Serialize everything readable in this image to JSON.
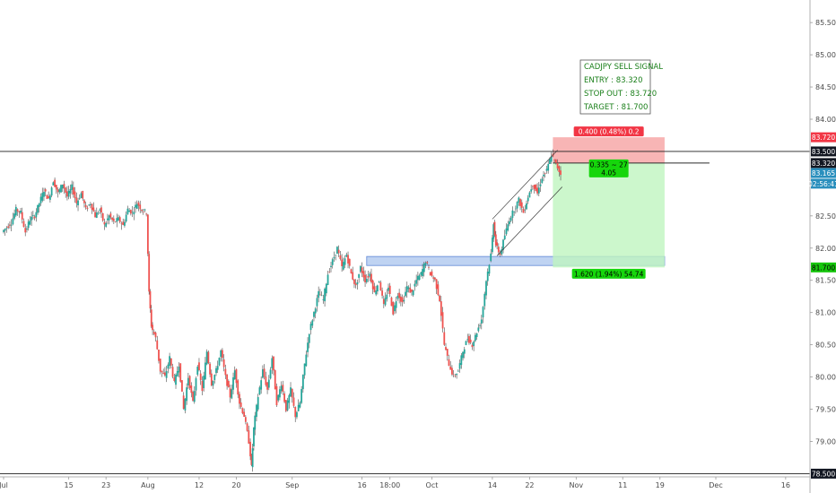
{
  "chart_data": {
    "type": "candlestick",
    "symbol_note": "",
    "x_ticks": [
      {
        "label": "Jul",
        "day": 0
      },
      {
        "label": "15",
        "day": 14
      },
      {
        "label": "23",
        "day": 22
      },
      {
        "label": "Aug",
        "day": 31
      },
      {
        "label": "12",
        "day": 42
      },
      {
        "label": "20",
        "day": 50
      },
      {
        "label": "Sep",
        "day": 62
      },
      {
        "label": "16",
        "day": 77
      },
      {
        "label": "18:00",
        "day": 83
      },
      {
        "label": "Oct",
        "day": 92
      },
      {
        "label": "14",
        "day": 105
      },
      {
        "label": "22",
        "day": 113
      },
      {
        "label": "Nov",
        "day": 123
      },
      {
        "label": "11",
        "day": 133
      },
      {
        "label": "19",
        "day": 141
      },
      {
        "label": "Dec",
        "day": 153
      },
      {
        "label": "16",
        "day": 168
      }
    ],
    "y_ticks": [
      "79.000",
      "79.500",
      "80.000",
      "80.500",
      "81.000",
      "81.500",
      "82.000",
      "82.500",
      "83.000",
      "84.000",
      "84.500",
      "85.000",
      "85.500"
    ],
    "ylim": [
      78.45,
      85.85
    ],
    "xlim": [
      0,
      174
    ],
    "path": [
      [
        0,
        82.25
      ],
      [
        2,
        82.4
      ],
      [
        3,
        82.6
      ],
      [
        4,
        82.55
      ],
      [
        5,
        82.25
      ],
      [
        6,
        82.45
      ],
      [
        7,
        82.5
      ],
      [
        8,
        82.7
      ],
      [
        9,
        82.9
      ],
      [
        10,
        82.75
      ],
      [
        11,
        83.05
      ],
      [
        12,
        82.85
      ],
      [
        13,
        83.0
      ],
      [
        14,
        82.8
      ],
      [
        15,
        82.95
      ],
      [
        16,
        82.7
      ],
      [
        17,
        82.85
      ],
      [
        18,
        82.6
      ],
      [
        19,
        82.7
      ],
      [
        20,
        82.5
      ],
      [
        21,
        82.6
      ],
      [
        22,
        82.35
      ],
      [
        23,
        82.5
      ],
      [
        24,
        82.4
      ],
      [
        25,
        82.45
      ],
      [
        26,
        82.35
      ],
      [
        27,
        82.6
      ],
      [
        28,
        82.55
      ],
      [
        29,
        82.7
      ],
      [
        30,
        82.6
      ],
      [
        31,
        82.55
      ],
      [
        31.5,
        81.3
      ],
      [
        32,
        80.8
      ],
      [
        33,
        80.6
      ],
      [
        34,
        80.1
      ],
      [
        35,
        80.0
      ],
      [
        36,
        80.3
      ],
      [
        37,
        79.9
      ],
      [
        38,
        80.2
      ],
      [
        39,
        79.5
      ],
      [
        40,
        80.0
      ],
      [
        41,
        79.6
      ],
      [
        42,
        80.2
      ],
      [
        43,
        79.8
      ],
      [
        44,
        80.4
      ],
      [
        45,
        79.9
      ],
      [
        46,
        80.1
      ],
      [
        47,
        80.4
      ],
      [
        48,
        80.0
      ],
      [
        49,
        79.7
      ],
      [
        50,
        80.1
      ],
      [
        51,
        79.6
      ],
      [
        52,
        79.4
      ],
      [
        53,
        79.0
      ],
      [
        53.5,
        78.6
      ],
      [
        54,
        79.2
      ],
      [
        55,
        79.7
      ],
      [
        56,
        80.1
      ],
      [
        57,
        79.8
      ],
      [
        58,
        80.3
      ],
      [
        59,
        79.6
      ],
      [
        60,
        79.9
      ],
      [
        61,
        79.5
      ],
      [
        62,
        79.8
      ],
      [
        63,
        79.4
      ],
      [
        64,
        79.6
      ],
      [
        65,
        80.2
      ],
      [
        66,
        80.7
      ],
      [
        67,
        81.0
      ],
      [
        68,
        81.3
      ],
      [
        69,
        81.2
      ],
      [
        70,
        81.6
      ],
      [
        71,
        81.8
      ],
      [
        72,
        82.0
      ],
      [
        73,
        81.7
      ],
      [
        74,
        81.9
      ],
      [
        75,
        81.6
      ],
      [
        76,
        81.4
      ],
      [
        77,
        81.7
      ],
      [
        78,
        81.5
      ],
      [
        79,
        81.6
      ],
      [
        80,
        81.3
      ],
      [
        81,
        81.5
      ],
      [
        82,
        81.1
      ],
      [
        83,
        81.4
      ],
      [
        84,
        81.0
      ],
      [
        85,
        81.3
      ],
      [
        86,
        81.15
      ],
      [
        87,
        81.4
      ],
      [
        88,
        81.3
      ],
      [
        89,
        81.5
      ],
      [
        90,
        81.6
      ],
      [
        91,
        81.8
      ],
      [
        92,
        81.6
      ],
      [
        93,
        81.5
      ],
      [
        94,
        81.2
      ],
      [
        95,
        80.5
      ],
      [
        96,
        80.2
      ],
      [
        97,
        80.0
      ],
      [
        98,
        80.1
      ],
      [
        99,
        80.4
      ],
      [
        100,
        80.6
      ],
      [
        101,
        80.5
      ],
      [
        102,
        80.7
      ],
      [
        103,
        80.9
      ],
      [
        104,
        81.5
      ],
      [
        105,
        81.9
      ],
      [
        105.5,
        82.4
      ],
      [
        106,
        82.05
      ],
      [
        107,
        81.9
      ],
      [
        108,
        82.2
      ],
      [
        109,
        82.45
      ],
      [
        110,
        82.6
      ],
      [
        111,
        82.75
      ],
      [
        112,
        82.55
      ],
      [
        113,
        82.8
      ],
      [
        114,
        83.0
      ],
      [
        115,
        82.85
      ],
      [
        116,
        83.1
      ],
      [
        117,
        83.2
      ],
      [
        118,
        83.45
      ],
      [
        119,
        83.3
      ],
      [
        120,
        83.15
      ]
    ],
    "horizontal_levels": [
      {
        "label": "83.500",
        "value": 83.5
      },
      {
        "label": "78.500",
        "value": 78.5
      }
    ],
    "zone": {
      "y_low": 81.73,
      "y_high": 81.87,
      "x_start": 78,
      "x_end": 142
    },
    "channel": [
      [
        105,
        82.45
      ],
      [
        119,
        83.52
      ],
      [
        120,
        82.95
      ],
      [
        106,
        81.88
      ]
    ],
    "position": {
      "x_start": 118,
      "x_end": 142,
      "entry": 83.32,
      "stop": 83.72,
      "target": 81.7,
      "stop_label": "0.400 (0.48%) 0.2",
      "target_label": "1.620 (1.94%) 54.74",
      "mid_label_line1": "0.335 ~ 27",
      "mid_label_line2": "4.05"
    },
    "price_labels": [
      {
        "text": "83.720",
        "value": 83.72,
        "color": "#f23645",
        "text_color": "#ffffff"
      },
      {
        "text": "83.500",
        "value": 83.5,
        "color": "#131722",
        "text_color": "#ffffff"
      },
      {
        "text": "83.320",
        "value": 83.32,
        "color": "#131722",
        "text_color": "#ffffff"
      },
      {
        "text": "83.165",
        "value": 83.165,
        "color": "#2a8fbd",
        "text_color": "#ffffff"
      },
      {
        "text": "02:56:41",
        "value": 83.0,
        "color": "#2a8fbd",
        "text_color": "#ffffff"
      },
      {
        "text": "81.700",
        "value": 81.7,
        "color": "#16c60c",
        "text_color": "#000000"
      },
      {
        "text": "78.500",
        "value": 78.5,
        "color": "#131722",
        "text_color": "#ffffff"
      }
    ],
    "signal_lines": [
      "CADJPY SELL SIGNAL",
      "ENTRY : 83.320",
      "STOP OUT : 83.720",
      "TARGET : 81.700"
    ],
    "colors": {
      "up": "#26a69a",
      "down": "#ef5350",
      "wick": "#4a4a4a",
      "zone": "#a9c4ee",
      "zone_border": "#5f87d6",
      "stop_fill": "#f7a8a8",
      "target_fill": "#bff5bf",
      "signal_text": "#1a7f1a"
    }
  }
}
